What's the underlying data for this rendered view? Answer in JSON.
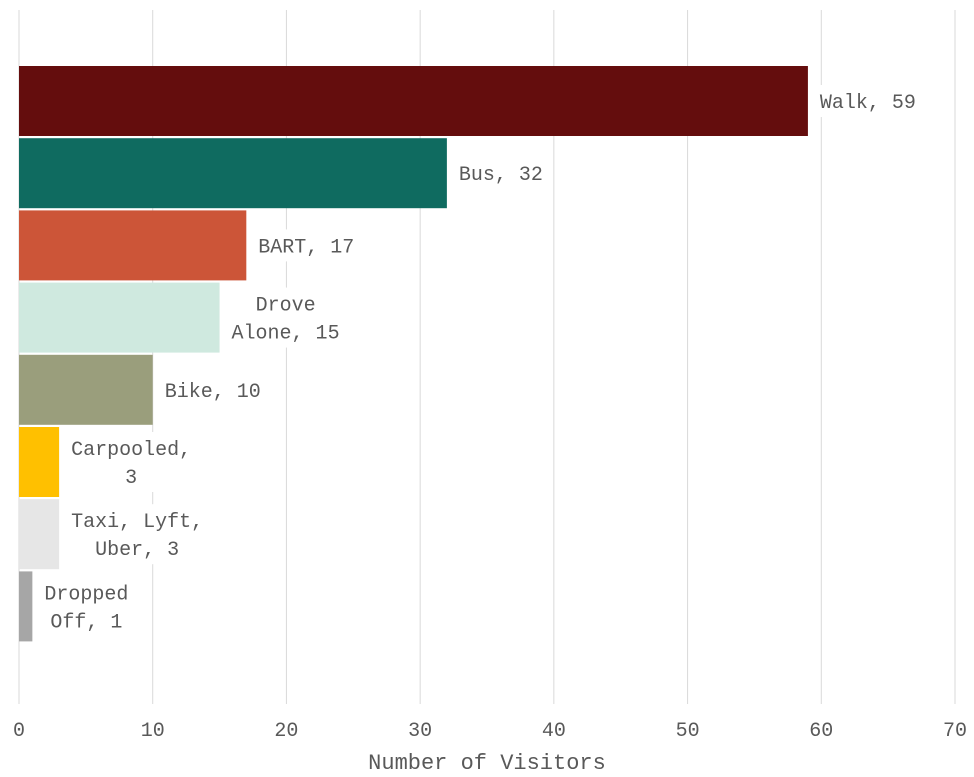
{
  "chart_data": {
    "type": "bar",
    "orientation": "horizontal",
    "categories": [
      "Walk",
      "Bus",
      "BART",
      "Drove Alone",
      "Bike",
      "Carpooled",
      "Taxi, Lyft, Uber",
      "Dropped Off"
    ],
    "values": [
      59,
      32,
      17,
      15,
      10,
      3,
      3,
      1
    ],
    "data_labels": [
      [
        "Walk, 59"
      ],
      [
        "Bus, 32"
      ],
      [
        "BART, 17"
      ],
      [
        "Drove",
        "Alone, 15"
      ],
      [
        "Bike, 10"
      ],
      [
        "Carpooled,",
        "3"
      ],
      [
        "Taxi, Lyft,",
        "Uber, 3"
      ],
      [
        "Dropped",
        "Off, 1"
      ]
    ],
    "colors": [
      "#640d0d",
      "#0f6b60",
      "#cc5538",
      "#cfe9df",
      "#9a9e7c",
      "#ffc000",
      "#e6e6e6",
      "#a6a6a6"
    ],
    "title": "",
    "xlabel": "Number of Visitors",
    "ylabel": "",
    "xlim": [
      0,
      70
    ],
    "x_ticks": [
      0,
      10,
      20,
      30,
      40,
      50,
      60,
      70
    ],
    "grid": "vertical",
    "legend": "none"
  }
}
